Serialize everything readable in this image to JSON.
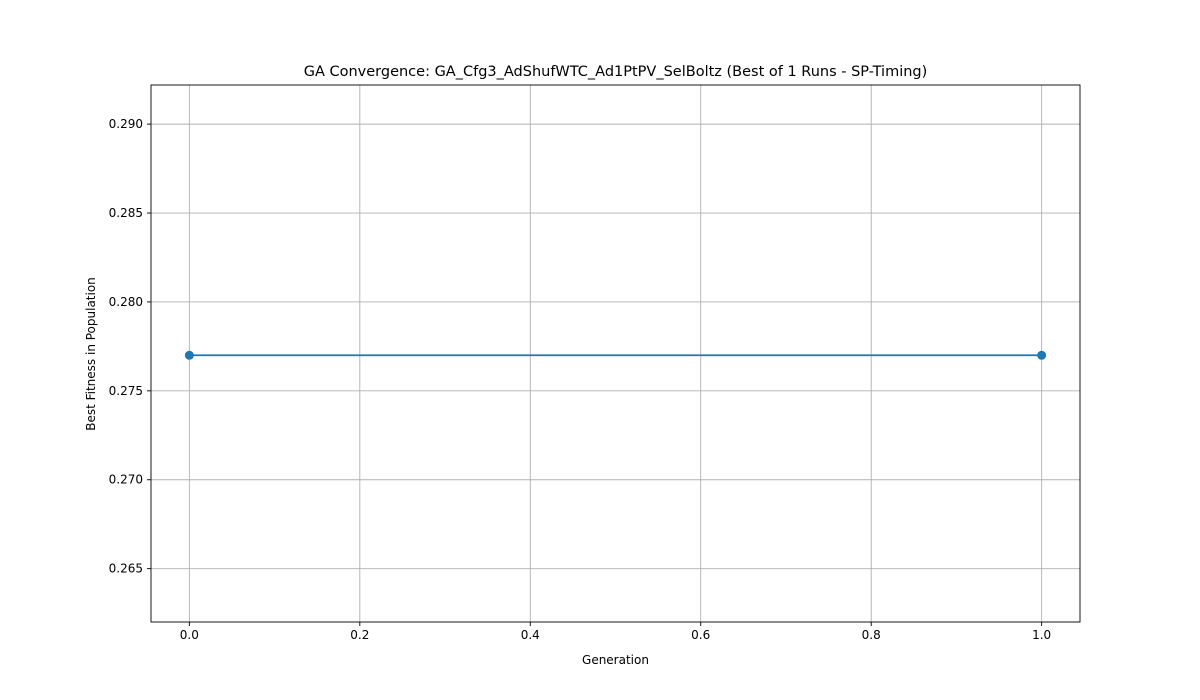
{
  "chart_data": {
    "type": "line",
    "title": "GA Convergence: GA_Cfg3_AdShufWTC_Ad1PtPV_SelBoltz (Best of 1 Runs - SP-Timing)",
    "xlabel": "Generation",
    "ylabel": "Best Fitness in Population",
    "xlim": [
      -0.045,
      1.045
    ],
    "ylim": [
      0.262,
      0.2922
    ],
    "x_ticks": [
      0.0,
      0.2,
      0.4,
      0.6,
      0.8,
      1.0
    ],
    "x_tick_labels": [
      "0.0",
      "0.2",
      "0.4",
      "0.6",
      "0.8",
      "1.0"
    ],
    "y_ticks": [
      0.265,
      0.27,
      0.275,
      0.28,
      0.285,
      0.29
    ],
    "y_tick_labels": [
      "0.265",
      "0.270",
      "0.275",
      "0.280",
      "0.285",
      "0.290"
    ],
    "grid": true,
    "series": [
      {
        "name": "Best Fitness",
        "x": [
          0,
          1
        ],
        "values": [
          0.277,
          0.277
        ],
        "color": "#1f77b4",
        "marker": "circle"
      }
    ]
  }
}
